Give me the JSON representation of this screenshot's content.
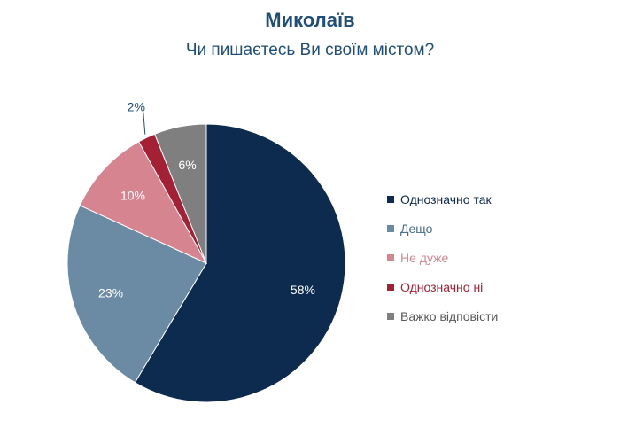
{
  "chart_data": {
    "type": "pie",
    "title": "Миколаїв",
    "subtitle": "Чи пишаєтесь Ви своїм містом?",
    "categories": [
      "Однозначно так",
      "Дещо",
      "Не дуже",
      "Однозначно ні",
      "Важко відповісти"
    ],
    "values": [
      58,
      23,
      10,
      2,
      6
    ],
    "value_labels": [
      "58%",
      "23%",
      "10%",
      "2%",
      "6%"
    ],
    "colors": [
      "#0d2a4f",
      "#6b8ba4",
      "#d6848f",
      "#a32035",
      "#7f7f7f"
    ],
    "legend_position": "right",
    "start_angle": "12 o'clock",
    "direction": "clockwise"
  },
  "legend": [
    {
      "label": "Однозначно так",
      "color": "#0d2a4f",
      "text_color": "#0d2a4f"
    },
    {
      "label": "Дещо",
      "color": "#6b8ba4",
      "text_color": "#4a6f8c"
    },
    {
      "label": "Не дуже",
      "color": "#d6848f",
      "text_color": "#d6848f"
    },
    {
      "label": "Однозначно ні",
      "color": "#a32035",
      "text_color": "#a32035"
    },
    {
      "label": "Важко відповісти",
      "color": "#7f7f7f",
      "text_color": "#595959"
    }
  ]
}
